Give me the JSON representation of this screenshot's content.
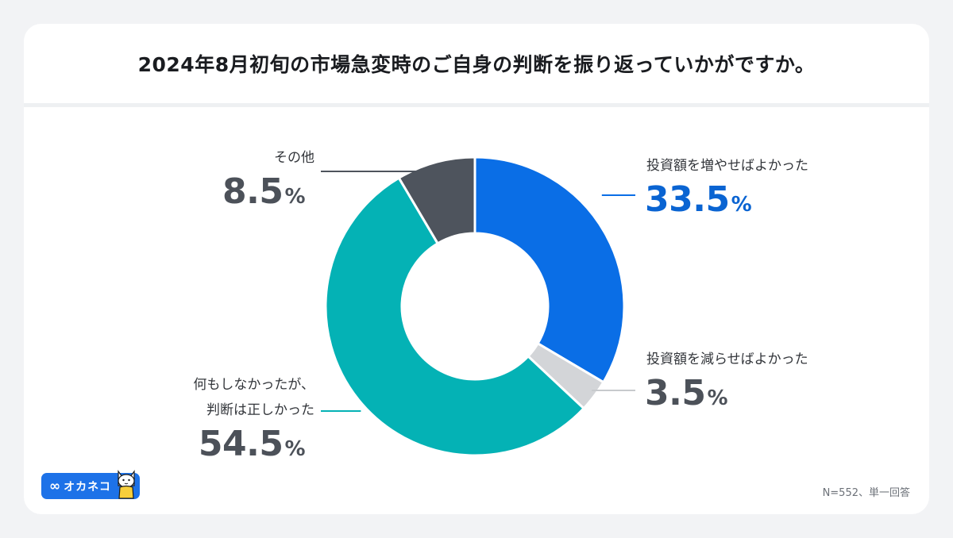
{
  "title": "2024年8月初旬の市場急変時のご自身の判断を振り返っていかがですか。",
  "note": "N=552、単一回答",
  "logo": {
    "brand": "オカネコ",
    "mark": "∞"
  },
  "chart_data": {
    "type": "pie",
    "variant": "donut",
    "title": "2024年8月初旬の市場急変時のご自身の判断を振り返っていかがですか。",
    "unit": "%",
    "slices": [
      {
        "label": "投資額を増やせばよかった",
        "value": 33.5,
        "display": "33.5",
        "color": "#0a6ee6"
      },
      {
        "label": "投資額を減らせばよかった",
        "value": 3.5,
        "display": "3.5",
        "color": "#d3d5d8"
      },
      {
        "label_lines": [
          "何もしなかったが、",
          "判断は正しかった"
        ],
        "value": 54.5,
        "display": "54.5",
        "color": "#04b2b5"
      },
      {
        "label": "その他",
        "value": 8.5,
        "display": "8.5",
        "color": "#4e545d"
      }
    ]
  }
}
